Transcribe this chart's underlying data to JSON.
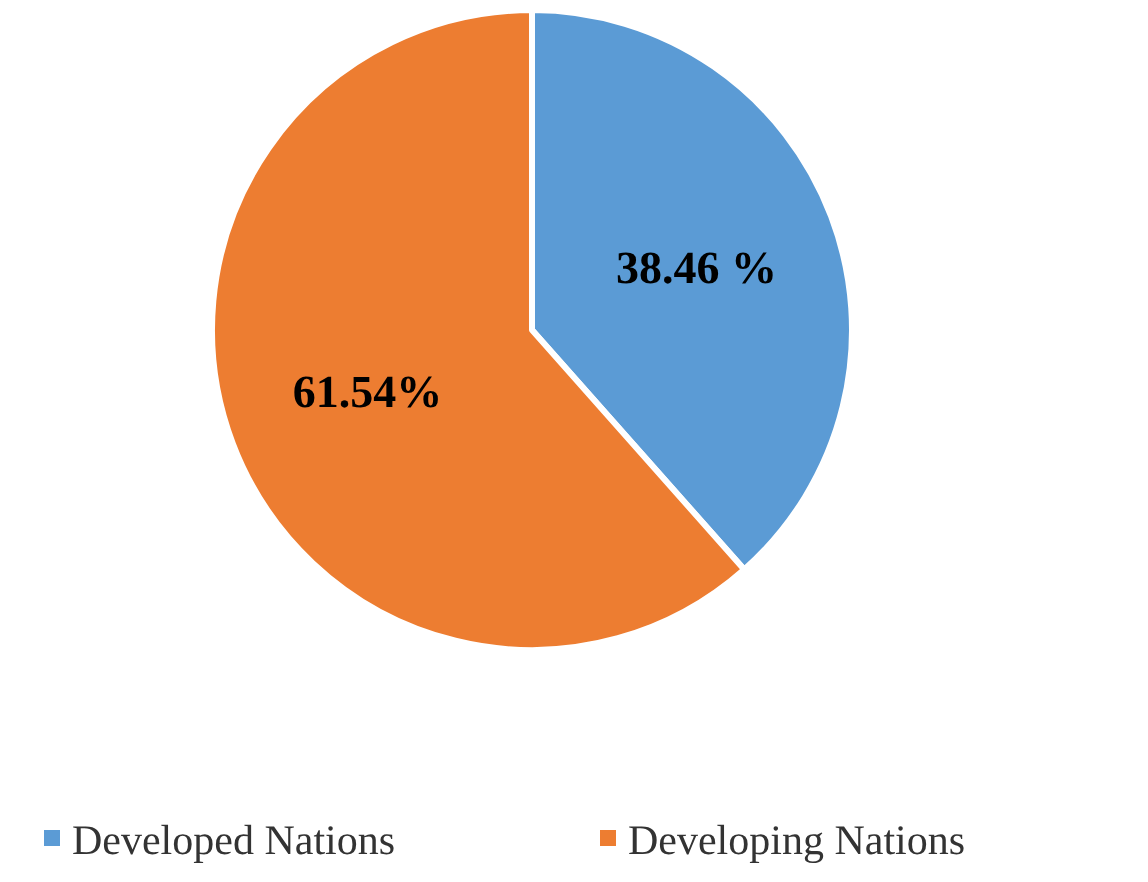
{
  "chart_data": {
    "type": "pie",
    "categories": [
      "Developed Nations",
      "Developing Nations"
    ],
    "values": [
      38.46,
      61.54
    ],
    "colors": [
      "#5b9bd5",
      "#ed7d31"
    ],
    "value_labels": [
      "38.46 %",
      "61.54%"
    ],
    "legend": "bottom"
  }
}
